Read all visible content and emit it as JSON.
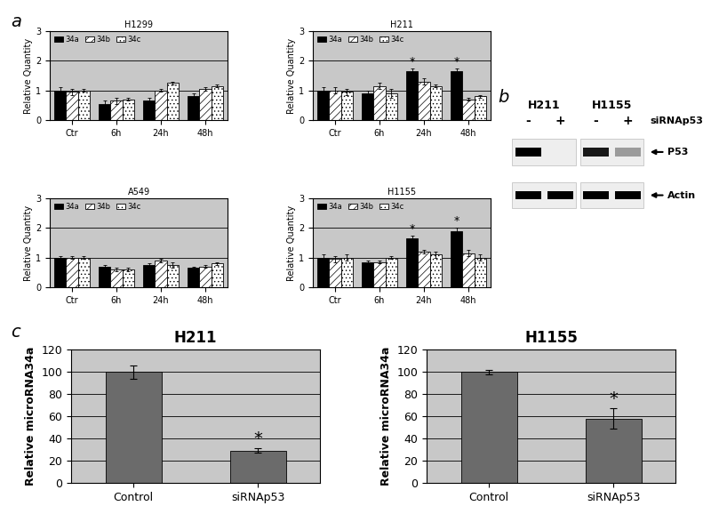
{
  "panel_labels": [
    "a",
    "b",
    "c"
  ],
  "chart_data": [
    {
      "type": "bar",
      "title": "H1299",
      "y_label": "Relative Quantity",
      "categories": [
        "Ctr",
        "6h",
        "24h",
        "48h"
      ],
      "series": [
        {
          "name": "34a",
          "color": "#000000",
          "values": [
            1.0,
            0.55,
            0.65,
            0.8
          ],
          "errors": [
            0.1,
            0.1,
            0.1,
            0.1
          ]
        },
        {
          "name": "34b",
          "color": "#ffffff",
          "values": [
            0.95,
            0.65,
            1.0,
            1.05
          ],
          "errors": [
            0.1,
            0.1,
            0.05,
            0.05
          ]
        },
        {
          "name": "34c",
          "color": "#ffffff",
          "values": [
            1.0,
            0.7,
            1.25,
            1.15
          ],
          "errors": [
            0.05,
            0.05,
            0.05,
            0.05
          ]
        }
      ],
      "ylim": [
        0,
        3
      ],
      "yticks": [
        0,
        1,
        2,
        3
      ],
      "grid": true,
      "legend": "upper left"
    },
    {
      "type": "bar",
      "title": "H211",
      "y_label": "Relative Quantity",
      "categories": [
        "Ctr",
        "6h",
        "24h",
        "48h"
      ],
      "series": [
        {
          "name": "34a",
          "color": "#000000",
          "values": [
            1.0,
            0.9,
            1.65,
            1.65
          ],
          "errors": [
            0.1,
            0.1,
            0.08,
            0.1
          ]
        },
        {
          "name": "34b",
          "color": "#ffffff",
          "values": [
            1.0,
            1.15,
            1.3,
            0.7
          ],
          "errors": [
            0.1,
            0.1,
            0.1,
            0.05
          ]
        },
        {
          "name": "34c",
          "color": "#ffffff",
          "values": [
            0.95,
            0.9,
            1.15,
            0.8
          ],
          "errors": [
            0.1,
            0.15,
            0.05,
            0.05
          ]
        }
      ],
      "annotations": [
        {
          "series": "34a",
          "category": "24h",
          "text": "*"
        },
        {
          "series": "34a",
          "category": "48h",
          "text": "*"
        }
      ],
      "ylim": [
        0,
        3
      ],
      "yticks": [
        0,
        1,
        2,
        3
      ],
      "grid": true,
      "legend": "upper left"
    },
    {
      "type": "bar",
      "title": "A549",
      "y_label": "Relative Quantity",
      "categories": [
        "Ctr",
        "6h",
        "24h",
        "48h"
      ],
      "series": [
        {
          "name": "34a",
          "color": "#000000",
          "values": [
            1.0,
            0.7,
            0.75,
            0.65
          ],
          "errors": [
            0.05,
            0.05,
            0.05,
            0.05
          ]
        },
        {
          "name": "34b",
          "color": "#ffffff",
          "values": [
            1.0,
            0.6,
            0.9,
            0.7
          ],
          "errors": [
            0.05,
            0.05,
            0.05,
            0.05
          ]
        },
        {
          "name": "34c",
          "color": "#ffffff",
          "values": [
            1.0,
            0.6,
            0.75,
            0.8
          ],
          "errors": [
            0.05,
            0.05,
            0.1,
            0.05
          ]
        }
      ],
      "ylim": [
        0,
        3
      ],
      "yticks": [
        0,
        1,
        2,
        3
      ],
      "grid": true,
      "legend": "upper left"
    },
    {
      "type": "bar",
      "title": "H1155",
      "y_label": "Relative Quantity",
      "categories": [
        "Ctr",
        "6h",
        "24h",
        "48h"
      ],
      "series": [
        {
          "name": "34a",
          "color": "#000000",
          "values": [
            1.0,
            0.85,
            1.65,
            1.9
          ],
          "errors": [
            0.1,
            0.05,
            0.1,
            0.1
          ]
        },
        {
          "name": "34b",
          "color": "#ffffff",
          "values": [
            0.95,
            0.85,
            1.2,
            1.15
          ],
          "errors": [
            0.1,
            0.05,
            0.05,
            0.1
          ]
        },
        {
          "name": "34c",
          "color": "#ffffff",
          "values": [
            1.0,
            1.0,
            1.1,
            1.0
          ],
          "errors": [
            0.1,
            0.05,
            0.1,
            0.1
          ]
        }
      ],
      "annotations": [
        {
          "series": "34a",
          "category": "24h",
          "text": "*"
        },
        {
          "series": "34a",
          "category": "48h",
          "text": "*"
        }
      ],
      "ylim": [
        0,
        3
      ],
      "yticks": [
        0,
        1,
        2,
        3
      ],
      "grid": true,
      "legend": "upper left"
    },
    {
      "type": "bar",
      "title": "H211",
      "y_label": "Relative microRNA34a",
      "categories": [
        "Control",
        "siRNAp53"
      ],
      "values": [
        100,
        29
      ],
      "errors": [
        6,
        2
      ],
      "color": "#6b6b6b",
      "annotations": [
        {
          "category": "siRNAp53",
          "text": "*"
        }
      ],
      "ylim": [
        0,
        120
      ],
      "yticks": [
        0,
        20,
        40,
        60,
        80,
        100,
        120
      ],
      "grid": true
    },
    {
      "type": "bar",
      "title": "H1155",
      "y_label": "Relative microRNA34a",
      "categories": [
        "Control",
        "siRNAp53"
      ],
      "values": [
        100,
        58
      ],
      "errors": [
        2,
        9
      ],
      "color": "#6b6b6b",
      "annotations": [
        {
          "category": "siRNAp53",
          "text": "*"
        }
      ],
      "ylim": [
        0,
        120
      ],
      "yticks": [
        0,
        20,
        40,
        60,
        80,
        100,
        120
      ],
      "grid": true
    }
  ],
  "blot": {
    "cell_lines": [
      "H211",
      "H1155"
    ],
    "lane_labels": [
      "-",
      "+",
      "-",
      "+"
    ],
    "treatment": "siRNAp53",
    "proteins": [
      {
        "name": "P53",
        "intensity": [
          1.0,
          0.0,
          0.9,
          0.35
        ]
      },
      {
        "name": "Actin",
        "intensity": [
          1.0,
          1.0,
          1.0,
          1.0
        ]
      }
    ]
  }
}
